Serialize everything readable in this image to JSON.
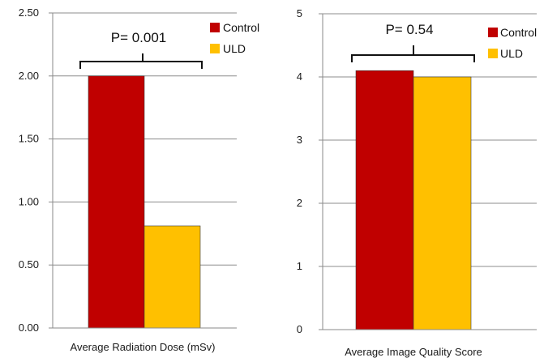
{
  "chart_data": [
    {
      "type": "bar",
      "categories": [
        "Average Radiation Dose (mSv)"
      ],
      "xlabel": "Average Radiation Dose (mSv)",
      "ylim": [
        0,
        2.5
      ],
      "yticks": [
        "0.00",
        "0.50",
        "1.00",
        "1.50",
        "2.00",
        "2.50"
      ],
      "grid": true,
      "legend": "top-right",
      "annotation": "P= 0.001",
      "series": [
        {
          "name": "Control",
          "values": [
            2.0
          ],
          "color": "#c00000"
        },
        {
          "name": "ULD",
          "values": [
            0.81
          ],
          "color": "#ffc000"
        }
      ]
    },
    {
      "type": "bar",
      "categories": [
        "Average Image Quality Score"
      ],
      "xlabel": "Average Image Quality Score",
      "ylim": [
        0,
        5
      ],
      "yticks": [
        "0",
        "1",
        "2",
        "3",
        "4",
        "5"
      ],
      "grid": true,
      "legend": "top-right",
      "annotation": "P= 0.54",
      "series": [
        {
          "name": "Control",
          "values": [
            4.1
          ],
          "color": "#c00000"
        },
        {
          "name": "ULD",
          "values": [
            4.0
          ],
          "color": "#ffc000"
        }
      ]
    }
  ]
}
